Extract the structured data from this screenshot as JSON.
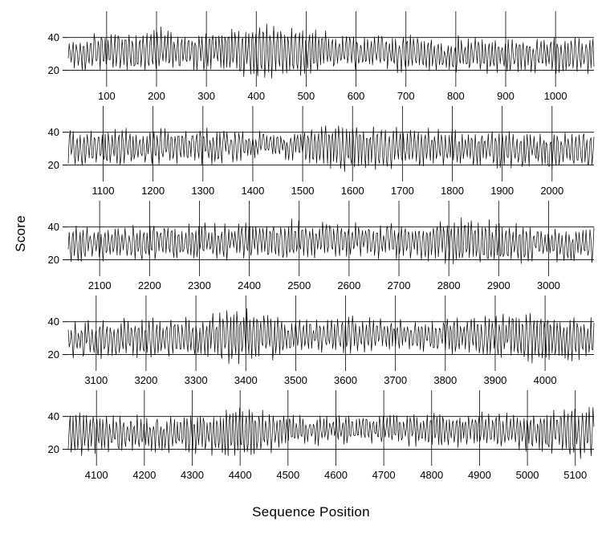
{
  "figure": {
    "background": "#ffffff",
    "line_color": "#000000"
  },
  "chart_data": {
    "type": "line",
    "title": "",
    "xlabel": "Sequence Position",
    "ylabel": "Score",
    "ylim": [
      10,
      56
    ],
    "yticks": [
      20,
      40
    ],
    "reference_lines_y": [
      20,
      40
    ],
    "grid": "vertical-lines-at-each-x-tick",
    "legend": "none",
    "panels": [
      {
        "x_min": 23,
        "x_max": 1077,
        "xticks": [
          100,
          200,
          300,
          400,
          500,
          600,
          700,
          800,
          900,
          1000
        ]
      },
      {
        "x_min": 1030,
        "x_max": 2084,
        "xticks": [
          1100,
          1200,
          1300,
          1400,
          1500,
          1600,
          1700,
          1800,
          1900,
          2000
        ]
      },
      {
        "x_min": 2037,
        "x_max": 3091,
        "xticks": [
          2100,
          2200,
          2300,
          2400,
          2500,
          2600,
          2700,
          2800,
          2900,
          3000
        ]
      },
      {
        "x_min": 3044,
        "x_max": 4098,
        "xticks": [
          3100,
          3200,
          3300,
          3400,
          3500,
          3600,
          3700,
          3800,
          3900,
          4000
        ]
      },
      {
        "x_min": 4041,
        "x_max": 5139,
        "xticks": [
          4100,
          4200,
          4300,
          4400,
          4500,
          4600,
          4700,
          4800,
          4900,
          5000,
          5100
        ]
      }
    ],
    "series_model": {
      "description": "Single noisy quasi-periodic score trace spanning positions ~23 to ~5139, split across five stacked panels; mean ~30, oscillation period ~7 positions, baseline amplitude ~8.5, uniform noise ~3.5, values clipped to [13,53]; localized amplitude bursts produce peaks above the 40 reference line and dips below 20.",
      "seed": 42,
      "step": 2,
      "mean": 30.5,
      "mean_wander": 1.5,
      "mean_wander_period": 210,
      "base_amplitude": 8.5,
      "period": 7,
      "noise": 3.5,
      "clip": [
        13,
        53
      ],
      "bursts": [
        {
          "center": 200,
          "sigma": 25,
          "gain": 0.35
        },
        {
          "center": 430,
          "sigma": 65,
          "gain": 0.75
        },
        {
          "center": 1450,
          "sigma": 60,
          "gain": -0.35
        },
        {
          "center": 1575,
          "sigma": 45,
          "gain": 0.5
        },
        {
          "center": 1690,
          "sigma": 35,
          "gain": 0.3
        },
        {
          "center": 2450,
          "sigma": 40,
          "gain": 0.25
        },
        {
          "center": 2850,
          "sigma": 55,
          "gain": 0.45
        },
        {
          "center": 3170,
          "sigma": 40,
          "gain": 0.3
        },
        {
          "center": 3390,
          "sigma": 60,
          "gain": 0.7
        },
        {
          "center": 3980,
          "sigma": 80,
          "gain": 0.5
        },
        {
          "center": 4410,
          "sigma": 50,
          "gain": 0.7
        },
        {
          "center": 4600,
          "sigma": 90,
          "gain": -0.3
        },
        {
          "center": 5120,
          "sigma": 70,
          "gain": 0.5
        }
      ]
    }
  }
}
